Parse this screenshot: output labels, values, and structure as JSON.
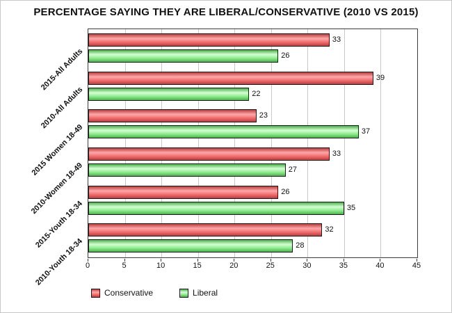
{
  "title": "PERCENTAGE SAYING THEY ARE LIBERAL/CONSERVATIVE (2010 VS 2015)",
  "colors": {
    "conservative": {
      "base": "#EF6A6C",
      "light": "#FFA8A8",
      "dark": "#B94042"
    },
    "liberal": {
      "base": "#8CE98C",
      "light": "#D4FFD4",
      "dark": "#4EB14E"
    },
    "bar_border": "#1A1A1A",
    "grid": "#C9C9C9",
    "plot_border": "#3C3C3C",
    "text": "#111111"
  },
  "legend": [
    {
      "label": "Conservative",
      "series": "conservative"
    },
    {
      "label": "Liberal",
      "series": "liberal"
    }
  ],
  "chart_data": {
    "type": "bar",
    "orientation": "horizontal",
    "title": "PERCENTAGE SAYING THEY ARE LIBERAL/CONSERVATIVE (2010 VS 2015)",
    "categories": [
      "2015-All Adults",
      "2010-All Adults",
      "2015 Women 18-49",
      "2010-Women 18-49",
      "2015-Youth 18-34",
      "2010-Youth 18-34"
    ],
    "series": [
      {
        "name": "Conservative",
        "color": "conservative",
        "values": [
          33,
          39,
          23,
          33,
          26,
          32
        ]
      },
      {
        "name": "Liberal",
        "color": "liberal",
        "values": [
          26,
          22,
          37,
          27,
          35,
          28
        ]
      }
    ],
    "xlim": [
      0,
      45
    ],
    "xticks": [
      0,
      5,
      10,
      15,
      20,
      25,
      30,
      35,
      40,
      45
    ],
    "grid": true,
    "legend_position": "bottom",
    "value_labels": true
  }
}
